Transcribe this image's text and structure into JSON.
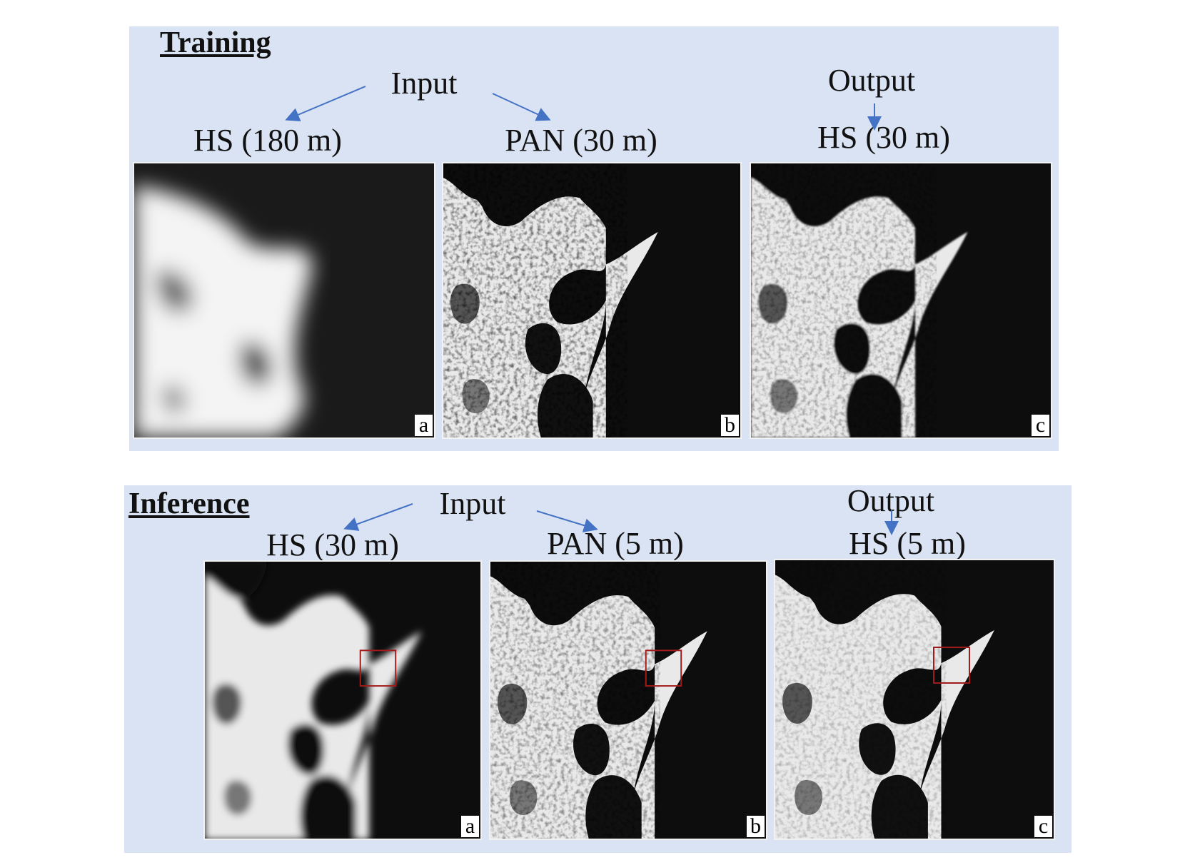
{
  "training": {
    "title": "Training",
    "input_label": "Input",
    "output_label": "Output",
    "panels": [
      {
        "label": "HS (180 m)",
        "tag": "a"
      },
      {
        "label": "PAN (30 m)",
        "tag": "b"
      },
      {
        "label": "HS (30 m)",
        "tag": "c"
      }
    ]
  },
  "inference": {
    "title": "Inference",
    "input_label": "Input",
    "output_label": "Output",
    "panels": [
      {
        "label": "HS (30 m)",
        "tag": "a"
      },
      {
        "label": "PAN (5 m)",
        "tag": "b"
      },
      {
        "label": "HS (5 m)",
        "tag": "c"
      }
    ]
  },
  "colors": {
    "panel_background": "#dae3f3",
    "arrow": "#4472c4",
    "highlight_box": "#a01c1c"
  }
}
